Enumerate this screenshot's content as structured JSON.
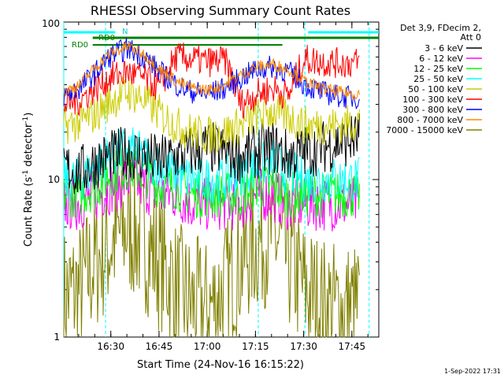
{
  "chart_data": {
    "type": "line",
    "title": "RHESSI Observing Summary Count Rates",
    "xlabel": "Start Time (24-Nov-16 16:15:22)",
    "ylabel_main": "Count Rate (s",
    "ylabel_sup": "-1",
    "ylabel_mid": " detector",
    "ylabel_end": ")",
    "yscale": "log",
    "ylim": [
      1,
      100
    ],
    "xlim_minutes": [
      0,
      98
    ],
    "x_ticks": [
      "16:30",
      "16:45",
      "17:00",
      "17:15",
      "17:30",
      "17:45"
    ],
    "y_ticks": [
      "1",
      "10",
      "100"
    ],
    "legend_header": [
      "Det 3,9, FDecim 2,",
      "Att 0"
    ],
    "legend_placement": "right",
    "timestamp": "1-Sep-2022 17:31",
    "annotations": {
      "rd0_a": "RD0",
      "rd0_b": "RD0",
      "n_label": "N"
    },
    "series": [
      {
        "name": "3 - 6 keV",
        "color": "#000000",
        "values": [
          12,
          11,
          13,
          14,
          15,
          14,
          13,
          14,
          15,
          16,
          15,
          14,
          15,
          16,
          14,
          15,
          16,
          17,
          18,
          19
        ]
      },
      {
        "name": "6 - 12 keV",
        "color": "#ff00ff",
        "values": [
          7,
          7,
          8,
          9,
          10,
          9,
          8,
          8,
          7,
          7,
          7,
          7,
          8,
          8,
          7,
          7,
          7,
          7,
          7,
          7
        ]
      },
      {
        "name": "12 - 25 keV",
        "color": "#00ff00",
        "values": [
          8,
          8,
          9,
          11,
          12,
          11,
          9,
          9,
          8,
          8,
          8,
          8,
          9,
          9,
          8,
          8,
          8,
          8,
          8,
          8
        ]
      },
      {
        "name": "25 - 50 keV",
        "color": "#00ffff",
        "values": [
          10,
          10,
          12,
          14,
          16,
          14,
          12,
          11,
          10,
          10,
          10,
          11,
          12,
          13,
          11,
          10,
          10,
          10,
          10,
          10
        ]
      },
      {
        "name": "50 - 100 keV",
        "color": "#cccc00",
        "values": [
          22,
          23,
          26,
          32,
          36,
          32,
          26,
          22,
          20,
          19,
          20,
          22,
          25,
          27,
          25,
          22,
          22,
          22,
          23,
          24
        ]
      },
      {
        "name": "100 - 300 keV",
        "color": "#ff0000",
        "values": [
          30,
          32,
          38,
          45,
          48,
          44,
          38,
          60,
          58,
          56,
          57,
          30,
          35,
          38,
          34,
          58,
          56,
          55,
          55,
          56
        ]
      },
      {
        "name": "300 - 800 keV",
        "color": "#0000ff",
        "values": [
          34,
          38,
          48,
          62,
          68,
          60,
          48,
          40,
          36,
          35,
          38,
          44,
          50,
          52,
          48,
          40,
          36,
          34,
          33,
          34
        ]
      },
      {
        "name": "800 - 7000 keV",
        "color": "#ff8800",
        "values": [
          36,
          40,
          52,
          64,
          70,
          62,
          50,
          42,
          38,
          37,
          40,
          46,
          52,
          54,
          50,
          42,
          38,
          36,
          35,
          36
        ]
      },
      {
        "name": "7000 - 15000 keV",
        "color": "#808000",
        "values": [
          1.8,
          2,
          3,
          4,
          5,
          4,
          3,
          2,
          1.6,
          1.5,
          2,
          3,
          4,
          4.5,
          3,
          2,
          1.6,
          1.5,
          1.5,
          1.6
        ]
      }
    ],
    "series_x_minutes": [
      0,
      5,
      10,
      15,
      20,
      25,
      30,
      35,
      40,
      45,
      50,
      55,
      60,
      65,
      70,
      75,
      80,
      85,
      90,
      95
    ]
  }
}
